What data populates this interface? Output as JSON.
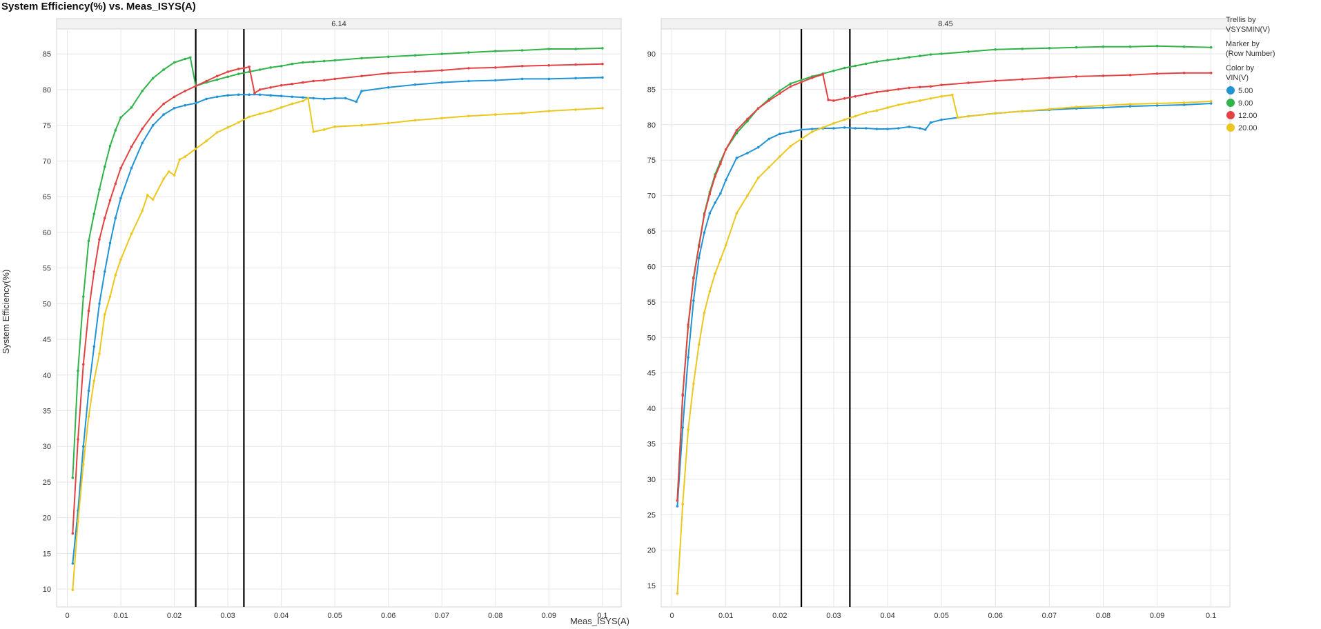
{
  "page": {
    "title": "System Efficiency(%) vs. Meas_ISYS(A)"
  },
  "legend": {
    "trellis_label_1": "Trellis by",
    "trellis_label_2": "VSYSMIN(V)",
    "marker_label_1": "Marker by",
    "marker_label_2": "(Row Number)",
    "color_label_1": "Color by",
    "color_label_2": "VIN(V)",
    "items": [
      {
        "label": "5.00",
        "color": "#1f93d4"
      },
      {
        "label": "9.00",
        "color": "#2fb34a"
      },
      {
        "label": "12.00",
        "color": "#e34242"
      },
      {
        "label": "20.00",
        "color": "#ecc71e"
      }
    ]
  },
  "chart_data": [
    {
      "type": "line",
      "title": "System Efficiency(%) vs. Meas_ISYS(A)",
      "panel": "6.14",
      "xlabel": "Meas_ISYS(A)",
      "ylabel": "System Efficiency(%)",
      "xlim": [
        -0.002,
        0.1035
      ],
      "ylim": [
        7.5,
        88.5
      ],
      "xticks": [
        "0",
        "0.01",
        "0.02",
        "0.03",
        "0.04",
        "0.05",
        "0.06",
        "0.07",
        "0.08",
        "0.09",
        "0.1"
      ],
      "yticks": [
        "10",
        "15",
        "20",
        "25",
        "30",
        "35",
        "40",
        "45",
        "50",
        "55",
        "60",
        "65",
        "70",
        "75",
        "80",
        "85"
      ],
      "vlines": [
        0.024,
        0.033
      ],
      "grid": true,
      "series": [
        {
          "name": "5.00",
          "color": "#1f93d4",
          "x": [
            0.001,
            0.002,
            0.003,
            0.004,
            0.005,
            0.006,
            0.007,
            0.008,
            0.009,
            0.01,
            0.012,
            0.014,
            0.016,
            0.018,
            0.02,
            0.022,
            0.024,
            0.026,
            0.028,
            0.03,
            0.032,
            0.034,
            0.036,
            0.038,
            0.04,
            0.042,
            0.044,
            0.046,
            0.048,
            0.05,
            0.052,
            0.054,
            0.055,
            0.06,
            0.065,
            0.07,
            0.075,
            0.08,
            0.085,
            0.09,
            0.095,
            0.1
          ],
          "y": [
            13.6,
            21.0,
            30.0,
            37.8,
            44.0,
            50.0,
            54.5,
            58.5,
            62.0,
            64.8,
            69.0,
            72.5,
            75.0,
            76.5,
            77.4,
            77.8,
            78.1,
            78.7,
            79.0,
            79.2,
            79.3,
            79.3,
            79.3,
            79.2,
            79.1,
            79.0,
            78.9,
            78.8,
            78.7,
            78.8,
            78.8,
            78.3,
            79.8,
            80.3,
            80.7,
            81.0,
            81.2,
            81.3,
            81.5,
            81.5,
            81.6,
            81.7
          ]
        },
        {
          "name": "9.00",
          "color": "#2fb34a",
          "x": [
            0.001,
            0.002,
            0.003,
            0.004,
            0.005,
            0.006,
            0.007,
            0.008,
            0.009,
            0.01,
            0.012,
            0.014,
            0.016,
            0.018,
            0.02,
            0.022,
            0.023,
            0.024,
            0.026,
            0.028,
            0.03,
            0.032,
            0.034,
            0.036,
            0.038,
            0.04,
            0.042,
            0.044,
            0.046,
            0.048,
            0.05,
            0.055,
            0.06,
            0.065,
            0.07,
            0.075,
            0.08,
            0.085,
            0.09,
            0.095,
            0.1
          ],
          "y": [
            25.6,
            40.6,
            51.0,
            58.8,
            62.6,
            66.0,
            69.2,
            72.1,
            74.3,
            76.1,
            77.5,
            79.8,
            81.6,
            82.8,
            83.8,
            84.3,
            84.5,
            80.5,
            81.0,
            81.4,
            81.8,
            82.2,
            82.5,
            82.8,
            83.1,
            83.3,
            83.6,
            83.8,
            83.9,
            84.0,
            84.1,
            84.4,
            84.6,
            84.8,
            85.0,
            85.2,
            85.4,
            85.5,
            85.7,
            85.7,
            85.8
          ]
        },
        {
          "name": "12.00",
          "color": "#e34242",
          "x": [
            0.001,
            0.002,
            0.003,
            0.004,
            0.005,
            0.006,
            0.007,
            0.008,
            0.009,
            0.01,
            0.012,
            0.014,
            0.016,
            0.018,
            0.02,
            0.022,
            0.024,
            0.026,
            0.028,
            0.03,
            0.032,
            0.033,
            0.034,
            0.035,
            0.036,
            0.038,
            0.04,
            0.042,
            0.044,
            0.046,
            0.048,
            0.05,
            0.055,
            0.06,
            0.065,
            0.07,
            0.075,
            0.08,
            0.085,
            0.09,
            0.095,
            0.1
          ],
          "y": [
            17.8,
            31.0,
            41.5,
            49.0,
            54.5,
            59.0,
            62.0,
            64.5,
            66.8,
            69.0,
            72.0,
            74.5,
            76.5,
            78.0,
            79.0,
            79.8,
            80.5,
            81.2,
            81.9,
            82.5,
            82.9,
            83.0,
            83.2,
            79.5,
            80.0,
            80.3,
            80.6,
            80.8,
            81.0,
            81.2,
            81.3,
            81.5,
            81.9,
            82.3,
            82.5,
            82.7,
            83.0,
            83.1,
            83.3,
            83.4,
            83.5,
            83.6
          ]
        },
        {
          "name": "20.00",
          "color": "#ecc71e",
          "x": [
            0.001,
            0.002,
            0.003,
            0.004,
            0.005,
            0.006,
            0.007,
            0.008,
            0.009,
            0.01,
            0.012,
            0.014,
            0.015,
            0.016,
            0.018,
            0.019,
            0.02,
            0.021,
            0.022,
            0.024,
            0.026,
            0.028,
            0.03,
            0.032,
            0.034,
            0.036,
            0.038,
            0.04,
            0.042,
            0.044,
            0.045,
            0.046,
            0.048,
            0.05,
            0.055,
            0.06,
            0.065,
            0.07,
            0.075,
            0.08,
            0.085,
            0.09,
            0.095,
            0.1
          ],
          "y": [
            9.9,
            19.5,
            27.5,
            34.2,
            39.2,
            43.0,
            48.5,
            51.0,
            54.0,
            56.2,
            59.8,
            63.0,
            65.2,
            64.6,
            67.5,
            68.5,
            68.0,
            70.2,
            70.6,
            71.7,
            72.8,
            74.0,
            74.7,
            75.4,
            76.2,
            76.6,
            77.0,
            77.5,
            78.0,
            78.4,
            78.8,
            74.1,
            74.4,
            74.8,
            75.0,
            75.3,
            75.7,
            76.0,
            76.3,
            76.5,
            76.7,
            77.0,
            77.2,
            77.4
          ]
        }
      ]
    },
    {
      "type": "line",
      "panel": "8.45",
      "xlabel": "Meas_ISYS(A)",
      "ylabel": "System Efficiency(%)",
      "xlim": [
        -0.002,
        0.1035
      ],
      "ylim": [
        12.0,
        93.5
      ],
      "xticks": [
        "0",
        "0.01",
        "0.02",
        "0.03",
        "0.04",
        "0.05",
        "0.06",
        "0.07",
        "0.08",
        "0.09",
        "0.1"
      ],
      "yticks": [
        "15",
        "20",
        "25",
        "30",
        "35",
        "40",
        "45",
        "50",
        "55",
        "60",
        "65",
        "70",
        "75",
        "80",
        "85",
        "90"
      ],
      "vlines": [
        0.024,
        0.033
      ],
      "grid": true,
      "series": [
        {
          "name": "5.00",
          "color": "#1f93d4",
          "x": [
            0.001,
            0.002,
            0.003,
            0.004,
            0.005,
            0.006,
            0.007,
            0.008,
            0.009,
            0.01,
            0.012,
            0.014,
            0.016,
            0.018,
            0.02,
            0.022,
            0.024,
            0.026,
            0.028,
            0.03,
            0.032,
            0.034,
            0.036,
            0.038,
            0.04,
            0.042,
            0.044,
            0.046,
            0.047,
            0.048,
            0.05,
            0.055,
            0.06,
            0.065,
            0.07,
            0.075,
            0.08,
            0.085,
            0.09,
            0.095,
            0.1
          ],
          "y": [
            26.2,
            37.3,
            47.2,
            55.2,
            61.2,
            64.8,
            67.5,
            69.0,
            70.3,
            72.2,
            75.3,
            76.0,
            76.8,
            78.0,
            78.7,
            79.0,
            79.3,
            79.4,
            79.5,
            79.5,
            79.6,
            79.5,
            79.5,
            79.4,
            79.4,
            79.5,
            79.7,
            79.5,
            79.3,
            80.3,
            80.7,
            81.2,
            81.6,
            81.9,
            82.1,
            82.3,
            82.4,
            82.6,
            82.7,
            82.8,
            83.0
          ]
        },
        {
          "name": "9.00",
          "color": "#2fb34a",
          "x": [
            0.001,
            0.002,
            0.003,
            0.004,
            0.005,
            0.006,
            0.007,
            0.008,
            0.009,
            0.01,
            0.012,
            0.014,
            0.016,
            0.018,
            0.02,
            0.022,
            0.024,
            0.026,
            0.028,
            0.03,
            0.032,
            0.034,
            0.036,
            0.038,
            0.04,
            0.042,
            0.044,
            0.046,
            0.048,
            0.05,
            0.055,
            0.06,
            0.065,
            0.07,
            0.075,
            0.08,
            0.085,
            0.09,
            0.095,
            0.1
          ],
          "y": [
            27.0,
            42.0,
            51.5,
            58.5,
            63.0,
            67.5,
            70.5,
            73.0,
            74.8,
            76.5,
            78.8,
            80.5,
            82.3,
            83.6,
            84.8,
            85.8,
            86.3,
            86.8,
            87.2,
            87.6,
            88.0,
            88.3,
            88.6,
            88.9,
            89.1,
            89.3,
            89.5,
            89.7,
            89.9,
            90.0,
            90.3,
            90.6,
            90.7,
            90.8,
            90.9,
            91.0,
            91.0,
            91.1,
            91.0,
            90.9
          ]
        },
        {
          "name": "12.00",
          "color": "#e34242",
          "x": [
            0.001,
            0.002,
            0.003,
            0.004,
            0.005,
            0.006,
            0.007,
            0.008,
            0.009,
            0.01,
            0.012,
            0.014,
            0.016,
            0.018,
            0.02,
            0.022,
            0.024,
            0.026,
            0.028,
            0.029,
            0.03,
            0.032,
            0.034,
            0.036,
            0.038,
            0.04,
            0.042,
            0.044,
            0.046,
            0.048,
            0.05,
            0.055,
            0.06,
            0.065,
            0.07,
            0.075,
            0.08,
            0.085,
            0.09,
            0.095,
            0.1
          ],
          "y": [
            27.0,
            41.8,
            51.8,
            58.3,
            62.8,
            67.3,
            70.2,
            72.7,
            74.5,
            76.5,
            79.2,
            80.8,
            82.3,
            83.4,
            84.4,
            85.4,
            86.0,
            86.6,
            87.1,
            83.5,
            83.4,
            83.7,
            84.0,
            84.3,
            84.6,
            84.8,
            85.0,
            85.2,
            85.3,
            85.4,
            85.6,
            85.9,
            86.2,
            86.4,
            86.6,
            86.8,
            86.9,
            87.0,
            87.2,
            87.3,
            87.3
          ]
        },
        {
          "name": "20.00",
          "color": "#ecc71e",
          "x": [
            0.001,
            0.002,
            0.003,
            0.004,
            0.005,
            0.006,
            0.007,
            0.008,
            0.009,
            0.01,
            0.012,
            0.014,
            0.016,
            0.018,
            0.02,
            0.022,
            0.024,
            0.026,
            0.028,
            0.03,
            0.032,
            0.034,
            0.036,
            0.038,
            0.04,
            0.042,
            0.044,
            0.046,
            0.048,
            0.05,
            0.052,
            0.053,
            0.055,
            0.06,
            0.065,
            0.07,
            0.075,
            0.08,
            0.085,
            0.09,
            0.095,
            0.1
          ],
          "y": [
            13.9,
            26.5,
            37.0,
            43.5,
            49.0,
            53.5,
            56.5,
            59.0,
            61.0,
            63.0,
            67.5,
            70.0,
            72.5,
            74.0,
            75.5,
            77.0,
            78.0,
            79.0,
            79.6,
            80.2,
            80.7,
            81.2,
            81.7,
            82.0,
            82.4,
            82.8,
            83.1,
            83.4,
            83.7,
            84.0,
            84.2,
            81.0,
            81.2,
            81.6,
            81.9,
            82.2,
            82.5,
            82.7,
            82.9,
            83.0,
            83.1,
            83.3
          ]
        }
      ]
    }
  ]
}
